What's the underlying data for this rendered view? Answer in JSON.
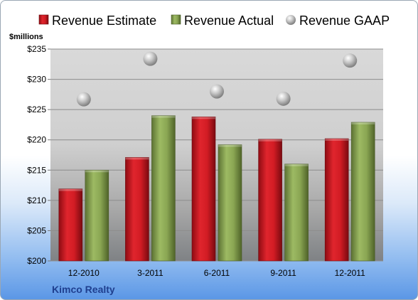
{
  "company": "Kimco Realty",
  "chart_data": {
    "type": "bar",
    "ylabel": "$millions",
    "ylim": [
      200,
      235
    ],
    "yticks": [
      "$200",
      "$205",
      "$210",
      "$215",
      "$220",
      "$225",
      "$230",
      "$235"
    ],
    "categories": [
      "12-2010",
      "3-2011",
      "6-2011",
      "9-2011",
      "12-2011"
    ],
    "series": [
      {
        "name": "Revenue Estimate",
        "kind": "bar",
        "color": "#c8141e",
        "values": [
          211.9,
          217.1,
          223.8,
          220.1,
          220.2
        ]
      },
      {
        "name": "Revenue Actual",
        "kind": "bar",
        "color": "#8da955",
        "values": [
          215.0,
          224.0,
          219.2,
          216.0,
          222.9
        ]
      },
      {
        "name": "Revenue GAAP",
        "kind": "marker",
        "color": "#b8b8b8",
        "values": [
          226.7,
          233.4,
          228.0,
          226.8,
          233.1
        ]
      }
    ],
    "grid": true,
    "legend": "top"
  }
}
